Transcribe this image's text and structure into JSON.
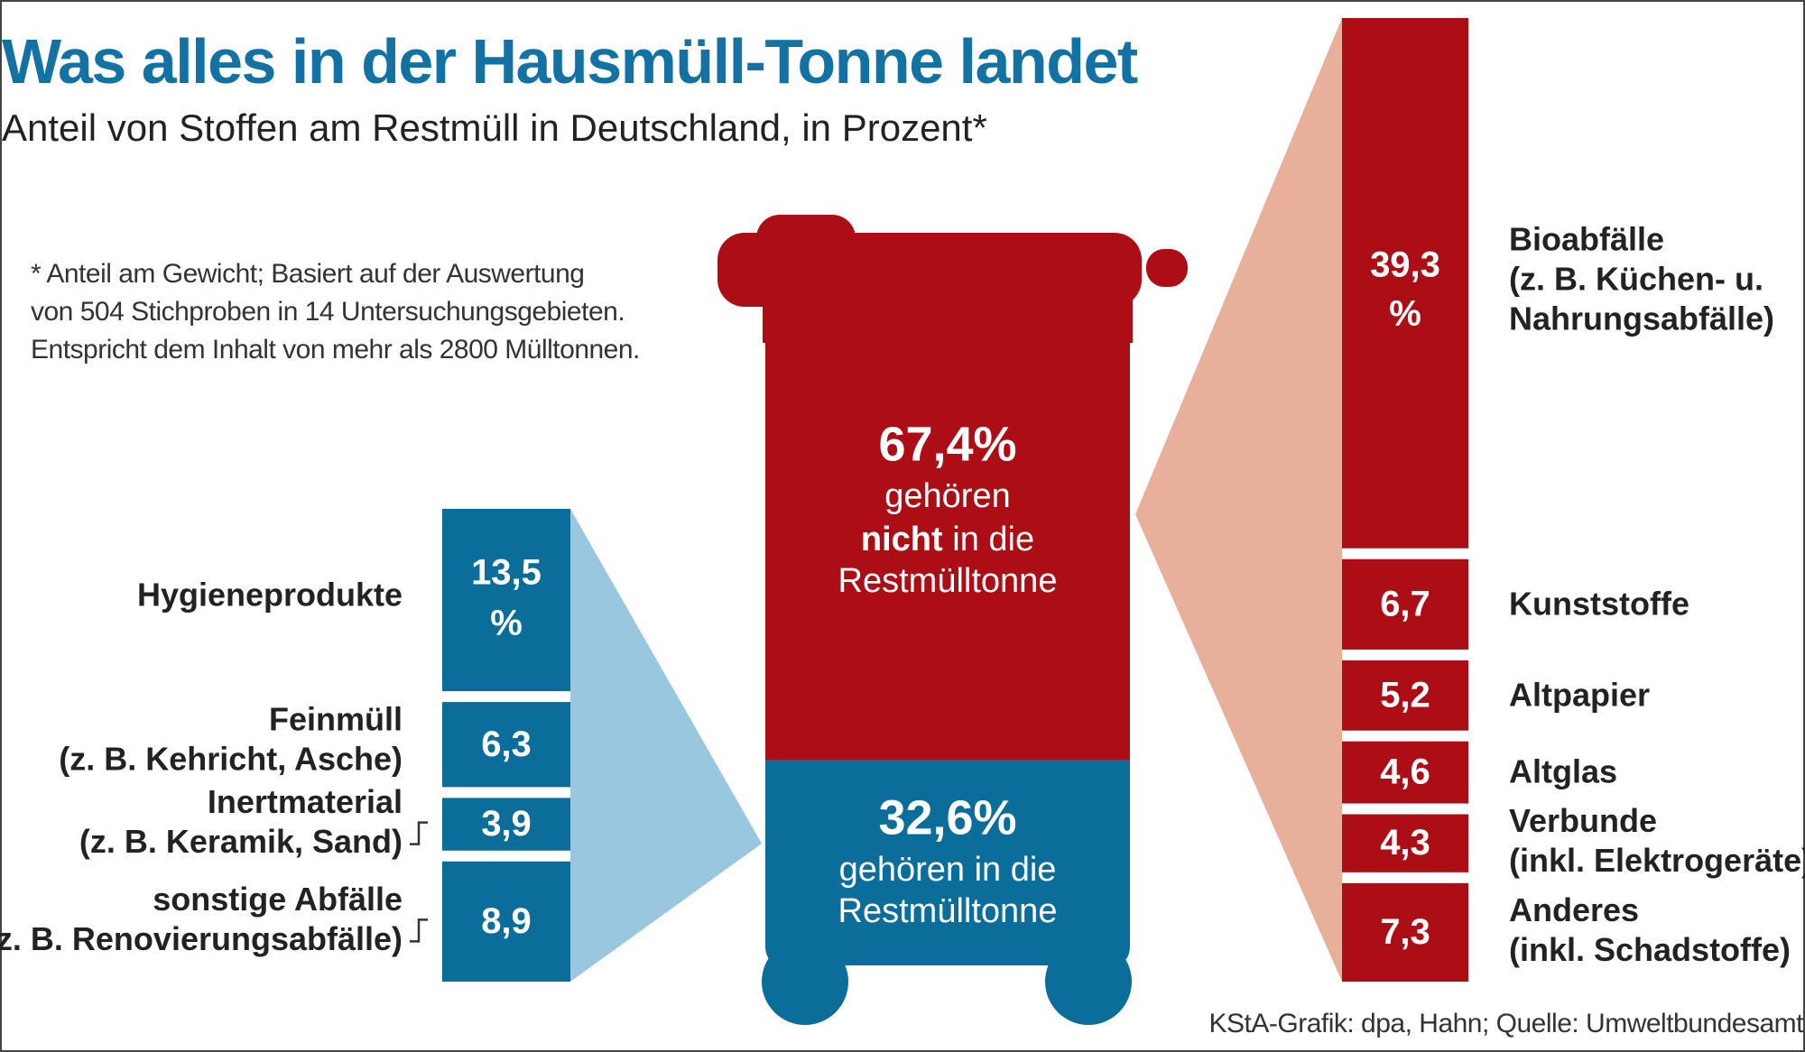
{
  "header": {
    "title": "Was alles in der Hausmüll-Tonne landet",
    "subtitle": "Anteil von Stoffen am Restmüll in Deutschland, in Prozent*"
  },
  "footnote": {
    "lines": [
      "* Anteil am Gewicht; Basiert auf der Auswertung",
      "von 504 Stichproben in 14 Untersuchungsgebieten.",
      "Entspricht dem Inhalt von mehr als 2800 Mülltonnen."
    ]
  },
  "source": "KStA-Grafik: dpa, Hahn; Quelle: Umweltbundesamt",
  "colors": {
    "red": "#ad0e16",
    "blue": "#0b6d99",
    "red_light": "#e8b09b",
    "blue_light": "#98c7df",
    "text": "#222222",
    "white": "#ffffff"
  },
  "icons": {
    "bin": "trash-bin-icon"
  },
  "chart_data": {
    "type": "bar",
    "bin": {
      "not_belong": {
        "value": 67.4,
        "value_label": "67,4%",
        "text_lines": [
          "gehören",
          "nicht",
          "in die",
          "Restmülltonne"
        ]
      },
      "belong": {
        "value": 32.6,
        "value_label": "32,6%",
        "text_lines": [
          "gehören in die",
          "Restmülltonne"
        ]
      }
    },
    "series": [
      {
        "group": "not_belong",
        "categories": [
          "Bioabfälle",
          "Kunststoffe",
          "Altpapier",
          "Altglas",
          "Verbunde",
          "Anderes"
        ],
        "label_lines": [
          [
            "Bioabfälle",
            "(z. B. Küchen- u.",
            "Nahrungsabfälle)"
          ],
          [
            "Kunststoffe"
          ],
          [
            "Altpapier"
          ],
          [
            "Altglas"
          ],
          [
            "Verbunde",
            "(inkl. Elektrogeräte)"
          ],
          [
            "Anderes",
            "(inkl. Schadstoffe)"
          ]
        ],
        "values": [
          39.3,
          6.7,
          5.2,
          4.6,
          4.3,
          7.3
        ],
        "value_labels": [
          [
            "39,3",
            "%"
          ],
          [
            "6,7"
          ],
          [
            "5,2"
          ],
          [
            "4,6"
          ],
          [
            "4,3"
          ],
          [
            "7,3"
          ]
        ]
      },
      {
        "group": "belong",
        "categories": [
          "Hygieneprodukte",
          "Feinmüll",
          "Inertmaterial",
          "sonstige Abfälle"
        ],
        "label_lines": [
          [
            "Hygieneprodukte"
          ],
          [
            "Feinmüll",
            "(z. B. Kehricht, Asche)"
          ],
          [
            "Inertmaterial",
            "(z. B. Keramik, Sand)"
          ],
          [
            "sonstige Abfälle",
            "(z. B. Renovierungsabfälle)"
          ]
        ],
        "values": [
          13.5,
          6.3,
          3.9,
          8.9
        ],
        "value_labels": [
          [
            "13,5",
            "%"
          ],
          [
            "6,3"
          ],
          [
            "3,9"
          ],
          [
            "8,9"
          ]
        ]
      }
    ]
  }
}
